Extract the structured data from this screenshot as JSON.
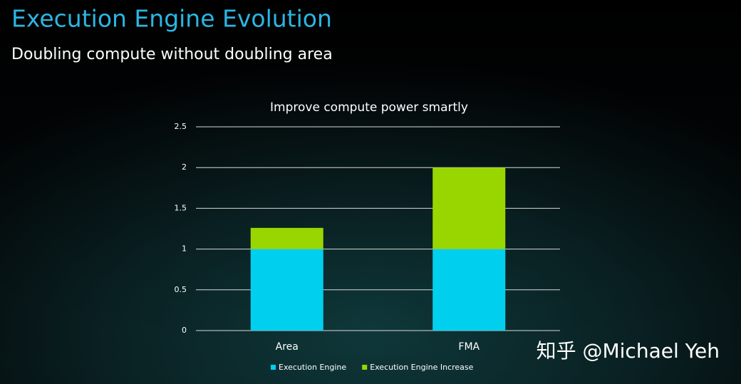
{
  "slide": {
    "title": "Execution Engine Evolution",
    "subtitle": "Doubling compute without doubling area"
  },
  "watermark": "知乎 @Michael Yeh",
  "chart_data": {
    "type": "stacked-bar",
    "title": "Improve compute power smartly",
    "categories": [
      "Area",
      "FMA"
    ],
    "series": [
      {
        "name": "Execution Engine",
        "color": "#00d0ee",
        "values": [
          1,
          1
        ]
      },
      {
        "name": "Execution Engine Increase",
        "color": "#99d600",
        "values": [
          0.26,
          1
        ]
      }
    ],
    "ylim": [
      0,
      2.5
    ],
    "yticks": [
      0,
      0.5,
      1,
      1.5,
      2,
      2.5
    ],
    "grid": true
  }
}
